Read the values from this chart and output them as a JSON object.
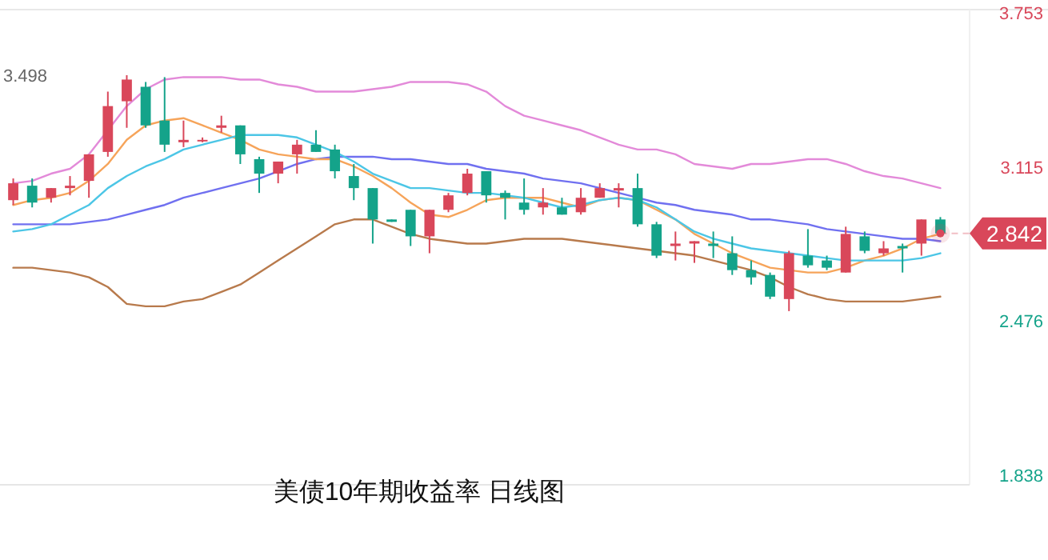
{
  "chart_data": {
    "type": "candlestick",
    "title": "美债10年期收益率  日线图",
    "categories": [
      null,
      null,
      null,
      null,
      null,
      null,
      null,
      null,
      null,
      null,
      null,
      null,
      null,
      null,
      null,
      null,
      null,
      null,
      null,
      null,
      null,
      null,
      null,
      null,
      null,
      null,
      null,
      null,
      null,
      null,
      null,
      null,
      null,
      null,
      null,
      null,
      null,
      null,
      null,
      null,
      null,
      null,
      null,
      null,
      null,
      null,
      null,
      null,
      null,
      null
    ],
    "ohlc": [
      [
        2.98,
        3.07,
        2.96,
        3.05
      ],
      [
        3.04,
        3.07,
        2.95,
        2.97
      ],
      [
        2.99,
        3.03,
        2.97,
        3.03
      ],
      [
        3.03,
        3.08,
        3.0,
        3.04
      ],
      [
        3.06,
        3.17,
        2.99,
        3.17
      ],
      [
        3.18,
        3.43,
        3.16,
        3.37
      ],
      [
        3.39,
        3.498,
        3.28,
        3.48
      ],
      [
        3.45,
        3.47,
        3.28,
        3.29
      ],
      [
        3.31,
        3.49,
        3.18,
        3.21
      ],
      [
        3.22,
        3.31,
        3.2,
        3.23
      ],
      [
        3.23,
        3.24,
        3.22,
        3.23
      ],
      [
        3.28,
        3.33,
        3.26,
        3.29
      ],
      [
        3.29,
        3.29,
        3.13,
        3.17
      ],
      [
        3.15,
        3.16,
        3.01,
        3.09
      ],
      [
        3.09,
        3.14,
        3.05,
        3.14
      ],
      [
        3.17,
        3.23,
        3.09,
        3.21
      ],
      [
        3.21,
        3.27,
        3.18,
        3.18
      ],
      [
        3.19,
        3.21,
        3.07,
        3.1
      ],
      [
        3.08,
        3.13,
        2.98,
        3.03
      ],
      [
        3.03,
        3.03,
        2.8,
        2.9
      ],
      [
        2.9,
        2.9,
        2.89,
        2.89
      ],
      [
        2.94,
        2.94,
        2.79,
        2.83
      ],
      [
        2.83,
        2.94,
        2.76,
        2.94
      ],
      [
        2.94,
        3.01,
        2.93,
        3.0
      ],
      [
        3.01,
        3.11,
        3.0,
        3.09
      ],
      [
        3.1,
        3.1,
        2.97,
        3.0
      ],
      [
        3.01,
        3.02,
        2.9,
        2.99
      ],
      [
        2.97,
        3.07,
        2.92,
        2.94
      ],
      [
        2.95,
        3.03,
        2.92,
        2.97
      ],
      [
        2.95,
        2.99,
        2.92,
        2.92
      ],
      [
        2.93,
        3.03,
        2.92,
        2.99
      ],
      [
        2.99,
        3.05,
        2.99,
        3.03
      ],
      [
        3.02,
        3.05,
        2.95,
        3.03
      ],
      [
        3.03,
        3.09,
        2.87,
        2.88
      ],
      [
        2.88,
        2.89,
        2.74,
        2.75
      ],
      [
        2.79,
        2.85,
        2.73,
        2.8
      ],
      [
        2.8,
        2.81,
        2.72,
        2.81
      ],
      [
        2.8,
        2.85,
        2.74,
        2.79
      ],
      [
        2.76,
        2.83,
        2.67,
        2.69
      ],
      [
        2.69,
        2.73,
        2.63,
        2.66
      ],
      [
        2.67,
        2.68,
        2.57,
        2.58
      ],
      [
        2.57,
        2.77,
        2.52,
        2.76
      ],
      [
        2.75,
        2.86,
        2.7,
        2.71
      ],
      [
        2.73,
        2.75,
        2.69,
        2.7
      ],
      [
        2.68,
        2.87,
        2.68,
        2.84
      ],
      [
        2.83,
        2.85,
        2.76,
        2.77
      ],
      [
        2.76,
        2.81,
        2.75,
        2.78
      ],
      [
        2.79,
        2.8,
        2.68,
        2.78
      ],
      [
        2.8,
        2.9,
        2.75,
        2.9
      ],
      [
        2.9,
        2.91,
        2.84,
        2.842
      ]
    ],
    "series": [
      {
        "type": "line",
        "color": "#e38ad9",
        "values": [
          3.05,
          3.06,
          3.09,
          3.11,
          3.17,
          3.27,
          3.37,
          3.44,
          3.48,
          3.49,
          3.49,
          3.49,
          3.48,
          3.48,
          3.46,
          3.45,
          3.43,
          3.43,
          3.43,
          3.44,
          3.45,
          3.47,
          3.47,
          3.47,
          3.46,
          3.43,
          3.37,
          3.33,
          3.31,
          3.29,
          3.27,
          3.24,
          3.21,
          3.19,
          3.19,
          3.17,
          3.13,
          3.12,
          3.11,
          3.13,
          3.13,
          3.14,
          3.15,
          3.15,
          3.13,
          3.1,
          3.08,
          3.07,
          3.05,
          3.03
        ]
      },
      {
        "type": "line",
        "color": "#7070f0",
        "values": [
          2.88,
          2.88,
          2.88,
          2.88,
          2.89,
          2.9,
          2.92,
          2.94,
          2.96,
          2.99,
          3.01,
          3.03,
          3.05,
          3.07,
          3.1,
          3.13,
          3.15,
          3.16,
          3.16,
          3.16,
          3.15,
          3.15,
          3.14,
          3.13,
          3.13,
          3.11,
          3.1,
          3.09,
          3.07,
          3.06,
          3.05,
          3.03,
          3.01,
          2.99,
          2.97,
          2.96,
          2.94,
          2.93,
          2.92,
          2.9,
          2.9,
          2.89,
          2.88,
          2.86,
          2.85,
          2.84,
          2.83,
          2.82,
          2.82,
          2.81
        ]
      },
      {
        "type": "line",
        "color": "#b87a4c",
        "values": [
          2.7,
          2.7,
          2.69,
          2.68,
          2.66,
          2.62,
          2.55,
          2.54,
          2.54,
          2.56,
          2.57,
          2.6,
          2.63,
          2.68,
          2.73,
          2.78,
          2.83,
          2.88,
          2.9,
          2.9,
          2.87,
          2.84,
          2.82,
          2.81,
          2.8,
          2.8,
          2.81,
          2.82,
          2.82,
          2.82,
          2.81,
          2.8,
          2.79,
          2.78,
          2.77,
          2.76,
          2.75,
          2.73,
          2.71,
          2.69,
          2.66,
          2.62,
          2.59,
          2.57,
          2.56,
          2.56,
          2.56,
          2.56,
          2.57,
          2.58
        ]
      },
      {
        "type": "line",
        "color": "#f6a45a",
        "values": [
          2.96,
          2.98,
          2.99,
          3.01,
          3.06,
          3.13,
          3.23,
          3.29,
          3.31,
          3.32,
          3.29,
          3.26,
          3.23,
          3.19,
          3.17,
          3.16,
          3.15,
          3.15,
          3.12,
          3.08,
          3.03,
          2.97,
          2.92,
          2.91,
          2.94,
          2.98,
          2.99,
          2.99,
          2.99,
          2.97,
          2.95,
          2.98,
          2.99,
          2.98,
          2.94,
          2.9,
          2.84,
          2.8,
          2.76,
          2.73,
          2.7,
          2.69,
          2.68,
          2.68,
          2.7,
          2.73,
          2.75,
          2.78,
          2.82,
          2.84
        ]
      },
      {
        "type": "line",
        "color": "#4cc6e6",
        "values": [
          2.85,
          2.86,
          2.88,
          2.92,
          2.96,
          3.03,
          3.08,
          3.12,
          3.15,
          3.19,
          3.21,
          3.23,
          3.25,
          3.25,
          3.25,
          3.24,
          3.21,
          3.18,
          3.14,
          3.09,
          3.06,
          3.03,
          3.03,
          3.02,
          3.01,
          3.01,
          3.0,
          2.99,
          2.97,
          2.95,
          2.96,
          2.98,
          2.99,
          2.98,
          2.95,
          2.9,
          2.85,
          2.82,
          2.8,
          2.78,
          2.77,
          2.76,
          2.75,
          2.74,
          2.73,
          2.73,
          2.73,
          2.73,
          2.74,
          2.76
        ]
      }
    ],
    "ylim": [
      1.8,
      3.77
    ],
    "yticks": [
      3.753,
      3.115,
      2.476,
      1.838
    ],
    "ref_lines": [
      {
        "axis": "y",
        "value": 2.842,
        "label": "2.842",
        "color": "#d9475a",
        "line_style": "dashed"
      }
    ],
    "annotations": [
      "3.498"
    ]
  }
}
